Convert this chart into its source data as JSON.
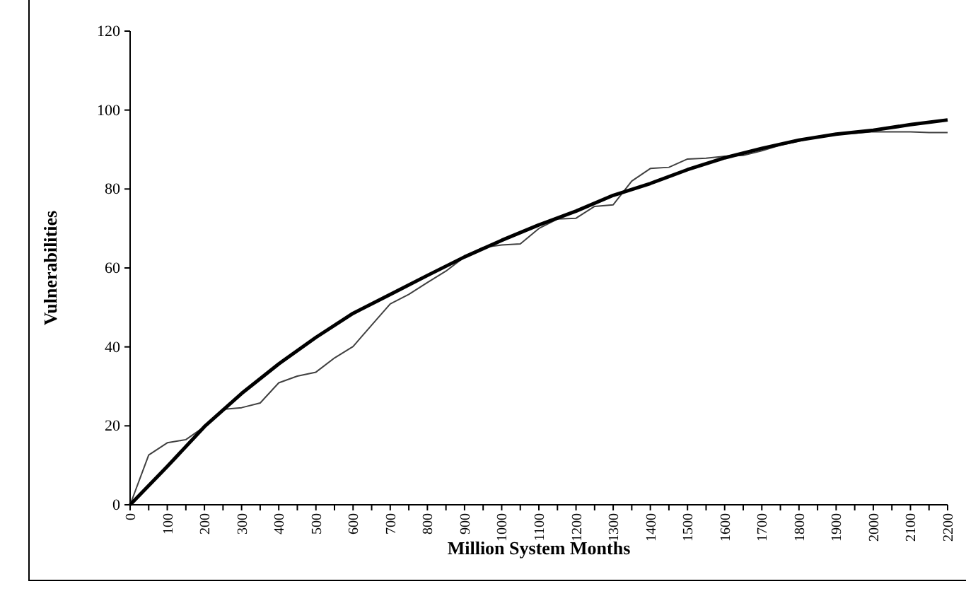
{
  "chart_data": {
    "type": "line",
    "xlabel": "Million System Months",
    "ylabel": "Vulnerabilities",
    "xlim": [
      0,
      2200
    ],
    "ylim": [
      0,
      120
    ],
    "yticks": [
      0,
      20,
      40,
      60,
      80,
      100,
      120
    ],
    "xticks": [
      0,
      {
        "value": 50,
        "label": null
      },
      100,
      {
        "value": 150,
        "label": null
      },
      200,
      {
        "value": 250,
        "label": null
      },
      300,
      {
        "value": 350,
        "label": null
      },
      400,
      {
        "value": 450,
        "label": null
      },
      500,
      {
        "value": 550,
        "label": null
      },
      600,
      {
        "value": 650,
        "label": null
      },
      700,
      {
        "value": 750,
        "label": null
      },
      800,
      {
        "value": 850,
        "label": null
      },
      900,
      {
        "value": 950,
        "label": null
      },
      1000,
      {
        "value": 1050,
        "label": null
      },
      1100,
      {
        "value": 1150,
        "label": null
      },
      1200,
      {
        "value": 1250,
        "label": null
      },
      1300,
      {
        "value": 1350,
        "label": null
      },
      1400,
      {
        "value": 1450,
        "label": null
      },
      1500,
      {
        "value": 1550,
        "label": null
      },
      1600,
      {
        "value": 1650,
        "label": null
      },
      1700,
      {
        "value": 1750,
        "label": null
      },
      1800,
      {
        "value": 1850,
        "label": null
      },
      1900,
      {
        "value": 1950,
        "label": null
      },
      2000,
      {
        "value": 2050,
        "label": null
      },
      2100,
      {
        "value": 2150,
        "label": null
      },
      2200
    ],
    "grid": false,
    "marker": "none",
    "line_style": "solid",
    "series": [
      {
        "color": "#404040",
        "x": [
          0,
          50,
          100,
          150,
          200,
          250,
          300,
          350,
          400,
          450,
          500,
          550,
          600,
          650,
          700,
          750,
          800,
          850,
          900,
          950,
          1000,
          1050,
          1100,
          1150,
          1200,
          1250,
          1300,
          1350,
          1400,
          1450,
          1500,
          1550,
          1600,
          1650,
          1700,
          1750,
          1800,
          1850,
          1900,
          1950,
          2000,
          2050,
          2100,
          2150,
          2200
        ],
        "values": [
          0,
          12.6,
          15.7,
          16.5,
          19.8,
          24.2,
          24.6,
          25.8,
          30.9,
          32.6,
          33.6,
          37.2,
          40.1,
          45.5,
          50.9,
          53.3,
          56.3,
          59.2,
          62.8,
          65.2,
          65.8,
          66.1,
          70,
          72.4,
          72.6,
          75.6,
          76,
          82,
          85.2,
          85.5,
          87.6,
          87.8,
          88.3,
          88.5,
          89.7,
          91.1,
          92.1,
          93.3,
          94,
          94.1,
          94.5,
          94.5,
          94.5,
          94.3,
          94.3
        ]
      },
      {
        "color": "#000000",
        "x": [
          0,
          100,
          200,
          300,
          400,
          500,
          600,
          700,
          800,
          900,
          1000,
          1100,
          1200,
          1300,
          1400,
          1500,
          1600,
          1700,
          1800,
          1900,
          2000,
          2100,
          2200
        ],
        "values": [
          0,
          9.7,
          19.8,
          28.2,
          35.7,
          42.4,
          48.5,
          53.3,
          58.1,
          62.8,
          67,
          70.9,
          74.4,
          78.4,
          81.4,
          84.9,
          87.9,
          90.3,
          92.4,
          93.9,
          94.9,
          96.3,
          97.5
        ]
      }
    ]
  }
}
